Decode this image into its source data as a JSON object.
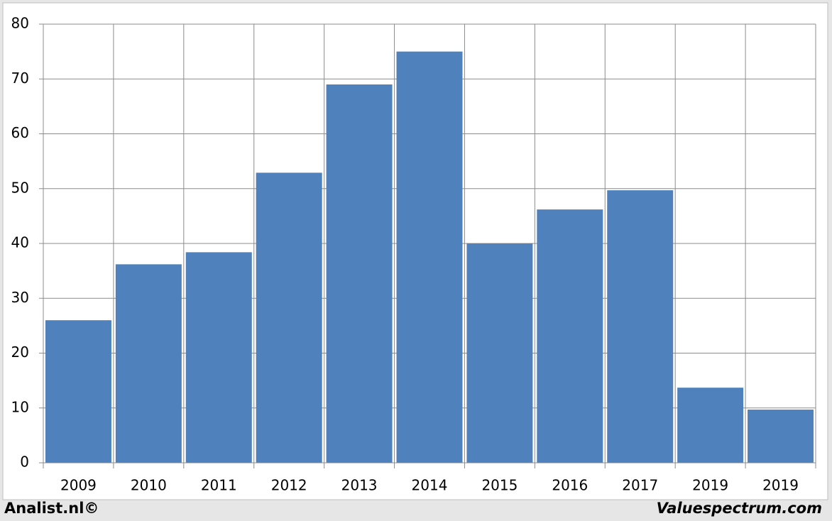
{
  "chart_data": {
    "type": "bar",
    "categories": [
      "2009",
      "2010",
      "2011",
      "2012",
      "2013",
      "2014",
      "2015",
      "2016",
      "2017",
      "2019",
      "2019"
    ],
    "values": [
      26.0,
      36.2,
      38.4,
      52.9,
      69.0,
      75.0,
      40.0,
      46.2,
      49.7,
      13.7,
      9.7
    ],
    "color": "#4f81bd",
    "ylim": [
      0,
      80
    ],
    "yticks": [
      0,
      10,
      20,
      30,
      40,
      50,
      60,
      70,
      80
    ],
    "grid": true,
    "footer_left": "Analist.nl©",
    "footer_right": "Valuespectrum.com"
  }
}
